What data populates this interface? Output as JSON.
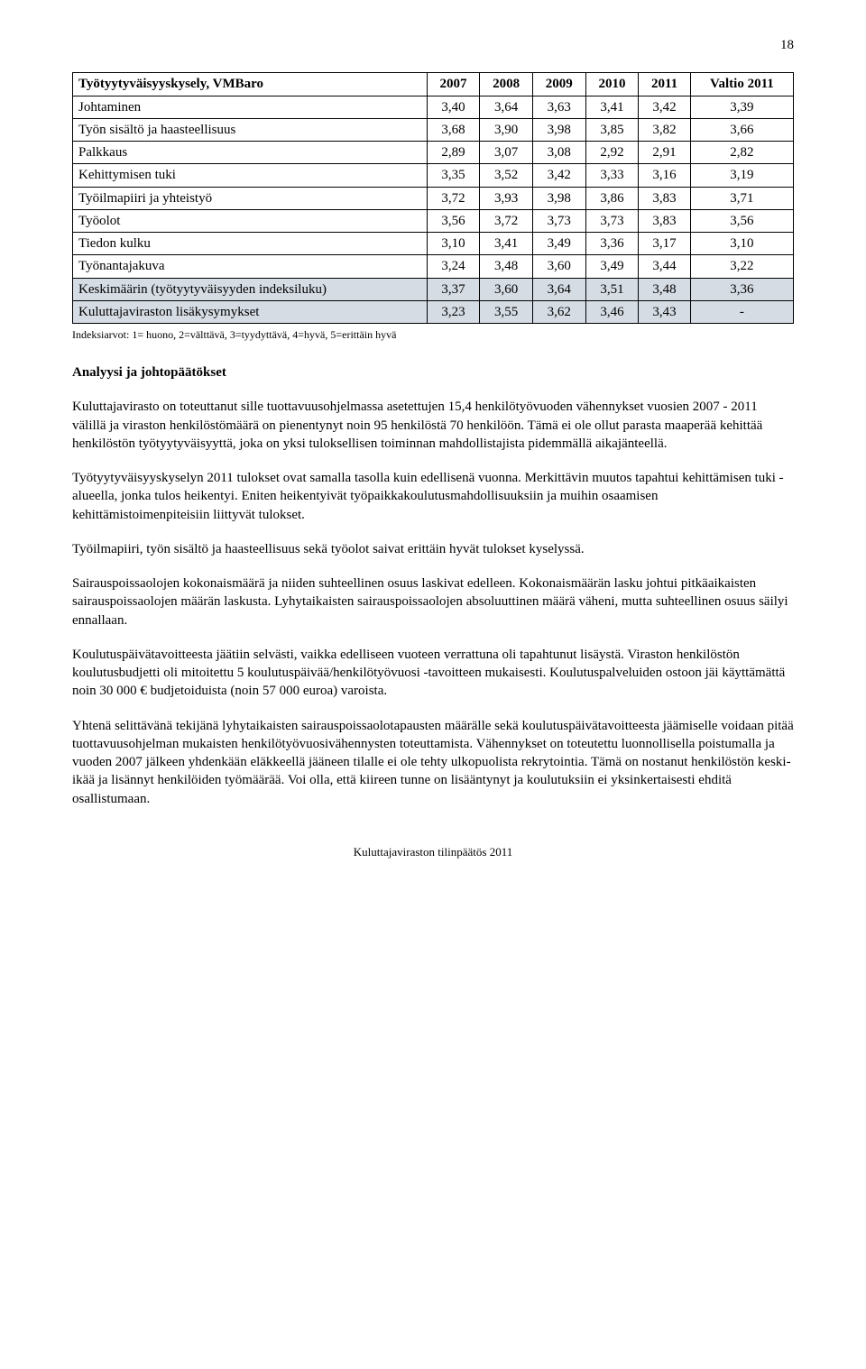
{
  "page_number": "18",
  "table": {
    "type": "table",
    "background_color": "#ffffff",
    "header_bg": "#ffffff",
    "shade_bg": "#d5dce4",
    "border_color": "#000000",
    "font_family": "Times New Roman",
    "font_size_pt": 11,
    "columns": [
      "Työtyytyväisyyskysely, VMBaro",
      "2007",
      "2008",
      "2009",
      "2010",
      "2011",
      "Valtio 2011"
    ],
    "rows": [
      {
        "label": "Johtaminen",
        "vals": [
          "3,40",
          "3,64",
          "3,63",
          "3,41",
          "3,42",
          "3,39"
        ]
      },
      {
        "label": "Työn sisältö ja haasteellisuus",
        "vals": [
          "3,68",
          "3,90",
          "3,98",
          "3,85",
          "3,82",
          "3,66"
        ]
      },
      {
        "label": "Palkkaus",
        "vals": [
          "2,89",
          "3,07",
          "3,08",
          "2,92",
          "2,91",
          "2,82"
        ]
      },
      {
        "label": "Kehittymisen tuki",
        "vals": [
          "3,35",
          "3,52",
          "3,42",
          "3,33",
          "3,16",
          "3,19"
        ]
      },
      {
        "label": "Työilmapiiri ja yhteistyö",
        "vals": [
          "3,72",
          "3,93",
          "3,98",
          "3,86",
          "3,83",
          "3,71"
        ]
      },
      {
        "label": "Työolot",
        "vals": [
          "3,56",
          "3,72",
          "3,73",
          "3,73",
          "3,83",
          "3,56"
        ]
      },
      {
        "label": "Tiedon kulku",
        "vals": [
          "3,10",
          "3,41",
          "3,49",
          "3,36",
          "3,17",
          "3,10"
        ]
      },
      {
        "label": "Työnantajakuva",
        "vals": [
          "3,24",
          "3,48",
          "3,60",
          "3,49",
          "3,44",
          "3,22"
        ]
      },
      {
        "label": "Keskimäärin (työtyytyväisyyden indeksiluku)",
        "vals": [
          "3,37",
          "3,60",
          "3,64",
          "3,51",
          "3,48",
          "3,36"
        ],
        "shade": true
      },
      {
        "label": "Kuluttajaviraston lisäkysymykset",
        "vals": [
          "3,23",
          "3,55",
          "3,62",
          "3,46",
          "3,43",
          "-"
        ],
        "shade": true
      }
    ]
  },
  "footnote": "Indeksiarvot: 1= huono, 2=välttävä, 3=tyydyttävä, 4=hyvä, 5=erittäin hyvä",
  "section_heading": "Analyysi ja johtopäätökset",
  "paragraphs": [
    "Kuluttajavirasto on toteuttanut sille tuottavuusohjelmassa asetettujen 15,4 henkilötyövuoden vähennykset vuosien 2007 - 2011 välillä ja viraston henkilöstömäärä on pienentynyt noin 95 henkilöstä 70 henkilöön. Tämä ei ole ollut parasta maaperää kehittää henkilöstön työtyytyväisyyttä, joka on yksi tuloksellisen toiminnan mahdollistajista pidemmällä aikajänteellä.",
    "Työtyytyväisyyskyselyn 2011 tulokset ovat samalla tasolla kuin edellisenä vuonna. Merkittävin muutos tapahtui kehittämisen tuki -alueella, jonka tulos heikentyi. Eniten heikentyivät työpaikkakoulutusmahdollisuuksiin ja muihin osaamisen kehittämistoimenpiteisiin liittyvät tulokset.",
    "Työilmapiiri, työn sisältö ja haasteellisuus sekä työolot saivat erittäin hyvät tulokset kyselyssä.",
    "Sairauspoissaolojen kokonaismäärä ja niiden suhteellinen osuus laskivat edelleen. Kokonaismäärän lasku johtui pitkäaikaisten sairauspoissaolojen määrän laskusta. Lyhytaikaisten sairauspoissaolojen absoluuttinen määrä väheni, mutta suhteellinen osuus säilyi ennallaan.",
    "Koulutuspäivätavoitteesta jäätiin selvästi, vaikka edelliseen vuoteen verrattuna oli tapahtunut lisäystä. Viraston henkilöstön koulutusbudjetti oli mitoitettu 5 koulutuspäivää/henkilötyövuosi -tavoitteen mukaisesti. Koulutuspalveluiden ostoon jäi käyttämättä noin 30 000 € budjetoiduista (noin 57 000 euroa) varoista.",
    "Yhtenä selittävänä tekijänä lyhytaikaisten sairauspoissaolotapausten määrälle sekä koulutuspäivätavoitteesta jäämiselle voidaan pitää tuottavuusohjelman mukaisten henkilötyövuosivähennysten toteuttamista. Vähennykset on toteutettu luonnollisella poistumalla ja vuoden 2007 jälkeen yhdenkään eläkkeellä jääneen tilalle ei ole tehty ulkopuolista rekrytointia. Tämä on nostanut henkilöstön keski-ikää ja lisännyt henkilöiden työmäärää. Voi olla, että kiireen tunne on lisääntynyt ja koulutuksiin ei yksinkertaisesti ehditä osallistumaan."
  ],
  "footer": "Kuluttajaviraston tilinpäätös 2011"
}
